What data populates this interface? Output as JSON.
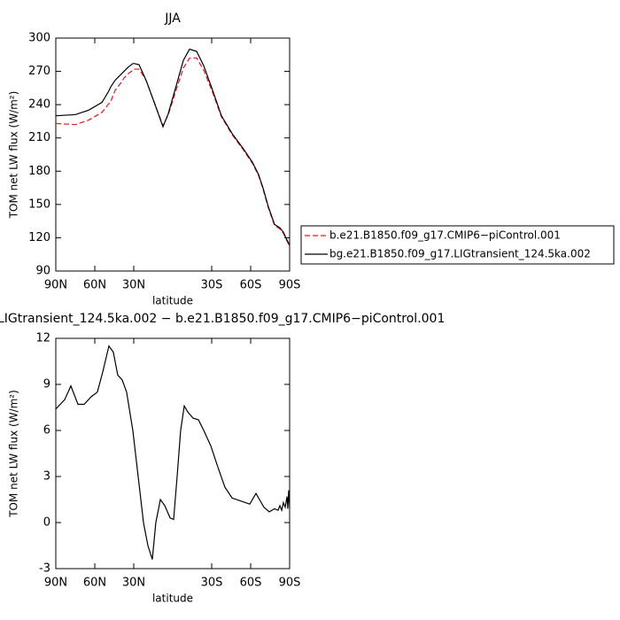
{
  "chart_data": [
    {
      "type": "line",
      "title": "JJA",
      "x_label": "latitude",
      "y_label": "TOM net LW flux (W/m²)",
      "x": [
        90,
        75,
        64.8,
        54.5,
        49.8,
        47.7,
        44.3,
        40.9,
        37.5,
        34.1,
        30.7,
        29.3,
        25.9,
        20.5,
        13.6,
        7.5,
        3.4,
        -3.4,
        -8.2,
        -13,
        -18.4,
        -23.9,
        -30.7,
        -37.5,
        -45.7,
        -54.5,
        -61.4,
        -66.1,
        -69.5,
        -73.6,
        -78.4,
        -82.5,
        -85.2,
        -90
      ],
      "series": [
        {
          "name": "b.e21.B1850.f09_g17.CMIP6−piControl.001",
          "color": "#e8141e",
          "dash": true,
          "values": [
            223,
            222,
            226,
            233,
            240,
            243,
            253,
            258,
            264,
            268,
            271,
            272,
            272,
            262,
            240,
            221,
            231,
            256,
            273,
            282,
            282,
            271,
            251,
            229,
            213,
            199,
            187,
            176,
            164,
            147,
            131,
            128,
            124,
            112
          ]
        },
        {
          "name": "bg.e21.B1850.f09_g17.LIGtransient_124.5ka.002",
          "color": "#000000",
          "dash": false,
          "values": [
            230,
            231,
            235,
            242,
            251,
            256,
            262,
            266,
            270,
            274,
            277,
            277,
            276,
            262,
            240,
            220,
            232,
            260,
            280,
            290,
            288,
            275,
            253,
            230,
            214,
            200,
            188,
            177,
            165,
            148,
            132,
            129,
            125,
            113
          ]
        }
      ],
      "xlim": [
        90,
        -90
      ],
      "xticks": [
        {
          "value": 90,
          "label": "90N"
        },
        {
          "value": 60,
          "label": "60N"
        },
        {
          "value": 30,
          "label": "30N"
        },
        {
          "value": -30,
          "label": "30S"
        },
        {
          "value": -60,
          "label": "60S"
        },
        {
          "value": -90,
          "label": "90S"
        }
      ],
      "ylim": [
        90,
        300
      ],
      "yticks": [
        90,
        120,
        150,
        180,
        210,
        240,
        270,
        300
      ],
      "legend": "outside right"
    },
    {
      "type": "line",
      "title": "LIGtransient_124.5ka.002 − b.e21.B1850.f09_g17.CMIP6−piControl.001",
      "x_label": "latitude",
      "y_label": "TOM net LW flux (W/m²)",
      "x": [
        90,
        83.2,
        78.4,
        72.9,
        68.2,
        62.7,
        58,
        53.9,
        49.1,
        45.7,
        42.3,
        38.9,
        35.5,
        30.7,
        26.6,
        22.5,
        19.1,
        15.7,
        13,
        9.5,
        6.1,
        2,
        -0.7,
        -3.4,
        -6.1,
        -8.9,
        -11.6,
        -15.7,
        -19.8,
        -23.9,
        -29.3,
        -34.8,
        -40.2,
        -45.7,
        -52.5,
        -59.3,
        -64.1,
        -66.1,
        -70.2,
        -74.3,
        -78.4,
        -81.1,
        -82.5,
        -83.9,
        -85.2,
        -86.6,
        -88,
        -88.6,
        -89.3,
        -90
      ],
      "series": [
        {
          "color": "#000000",
          "dash": false,
          "values": [
            7.4,
            8.0,
            8.9,
            7.7,
            7.7,
            8.2,
            8.5,
            9.8,
            11.5,
            11.1,
            9.6,
            9.3,
            8.5,
            6,
            3,
            0,
            -1.5,
            -2.4,
            0,
            1.5,
            1.1,
            0.3,
            0.2,
            3,
            6,
            7.6,
            7.2,
            6.8,
            6.7,
            6,
            5,
            3.6,
            2.3,
            1.6,
            1.4,
            1.2,
            1.9,
            1.6,
            1.0,
            0.7,
            0.9,
            0.8,
            1.1,
            0.8,
            1.3,
            1.0,
            1.7,
            0.9,
            2.1,
            1.0
          ]
        }
      ],
      "xlim": [
        90,
        -90
      ],
      "xticks": [
        {
          "value": 90,
          "label": "90N"
        },
        {
          "value": 60,
          "label": "60N"
        },
        {
          "value": 30,
          "label": "30N"
        },
        {
          "value": -30,
          "label": "30S"
        },
        {
          "value": -60,
          "label": "60S"
        },
        {
          "value": -90,
          "label": "90S"
        }
      ],
      "ylim": [
        -3,
        12
      ],
      "yticks": [
        -3,
        0,
        3,
        6,
        9,
        12
      ]
    }
  ]
}
